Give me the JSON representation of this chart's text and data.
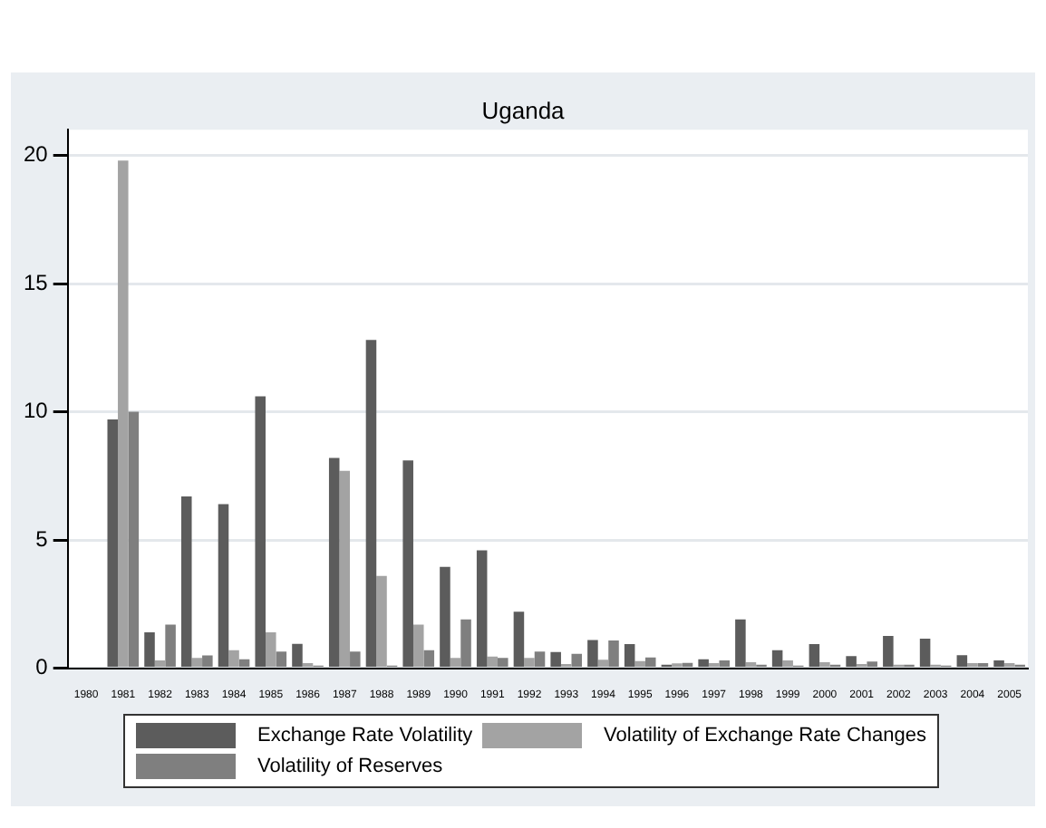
{
  "chart_data": {
    "type": "bar",
    "title": "Uganda",
    "categories": [
      "1980",
      "1981",
      "1982",
      "1983",
      "1984",
      "1985",
      "1986",
      "1987",
      "1988",
      "1989",
      "1990",
      "1991",
      "1992",
      "1993",
      "1994",
      "1995",
      "1996",
      "1997",
      "1998",
      "1999",
      "2000",
      "2001",
      "2002",
      "2003",
      "2004",
      "2005"
    ],
    "series": [
      {
        "name": "Exchange Rate Volatility",
        "color": "#5c5c5c",
        "values": [
          null,
          9.7,
          1.4,
          6.7,
          6.4,
          10.6,
          0.95,
          8.2,
          12.8,
          8.1,
          3.95,
          4.6,
          2.2,
          0.63,
          1.1,
          0.94,
          0.14,
          0.35,
          1.9,
          0.7,
          0.94,
          0.47,
          1.26,
          1.15,
          0.51,
          0.3
        ]
      },
      {
        "name": "Volatility of Exchange Rate Changes",
        "color": "#a3a3a3",
        "values": [
          null,
          19.8,
          0.3,
          0.4,
          0.7,
          1.4,
          0.2,
          7.7,
          3.6,
          1.7,
          0.4,
          0.45,
          0.4,
          0.16,
          0.33,
          0.28,
          0.19,
          0.2,
          0.23,
          0.3,
          0.23,
          0.16,
          0.14,
          0.14,
          0.2,
          0.2
        ]
      },
      {
        "name": "Volatility of Reserves",
        "color": "#7f7f7f",
        "values": [
          null,
          10.0,
          1.7,
          0.5,
          0.35,
          0.65,
          0.1,
          0.65,
          0.1,
          0.7,
          1.9,
          0.4,
          0.65,
          0.56,
          1.08,
          0.42,
          0.21,
          0.3,
          0.14,
          0.1,
          0.14,
          0.26,
          0.14,
          0.1,
          0.2,
          0.14
        ]
      }
    ],
    "ylim": [
      0,
      21
    ],
    "yticks": [
      0,
      5,
      10,
      15,
      20
    ],
    "grid": "y",
    "legend": "bottom"
  }
}
